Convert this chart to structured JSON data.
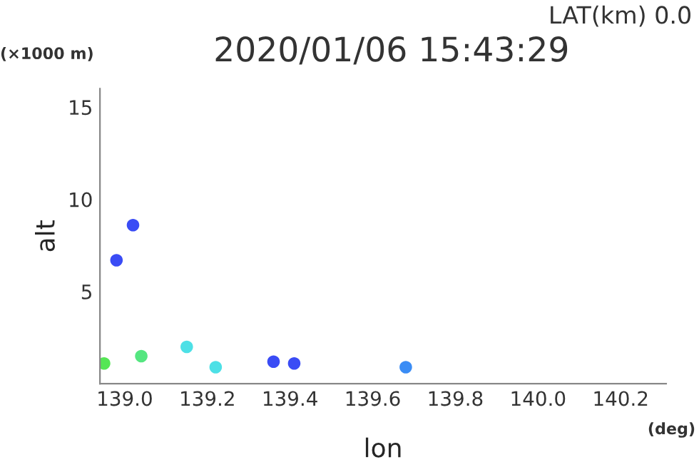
{
  "chart_data": {
    "type": "scatter",
    "title": "2020/01/06 15:43:29",
    "xlabel": "lon",
    "ylabel": "alt",
    "annotations": [
      "LAT(km) 0.0",
      "(×1000 m)",
      "(deg)"
    ],
    "x": [
      139.02,
      138.98,
      138.95,
      139.04,
      139.15,
      139.22,
      139.36,
      139.41,
      139.68
    ],
    "values": [
      8.6,
      6.7,
      1.1,
      1.5,
      2.0,
      0.9,
      1.2,
      1.1,
      0.9
    ],
    "colors": [
      "#3a4cf5",
      "#3a4cf5",
      "#55e655",
      "#55e680",
      "#4de0e6",
      "#4de0e6",
      "#3a4cf5",
      "#3a4cf5",
      "#3a8cf5"
    ],
    "marker": "circle",
    "xlim": [
      138.94,
      140.31
    ],
    "ylim": [
      0,
      16
    ],
    "xticks": [
      {
        "value": 139,
        "label": "139.0"
      },
      139.2,
      139.4,
      139.6,
      139.8,
      {
        "value": 140,
        "label": "140.0"
      },
      140.2
    ],
    "yticks": [
      5,
      10,
      15
    ],
    "grid": false
  }
}
